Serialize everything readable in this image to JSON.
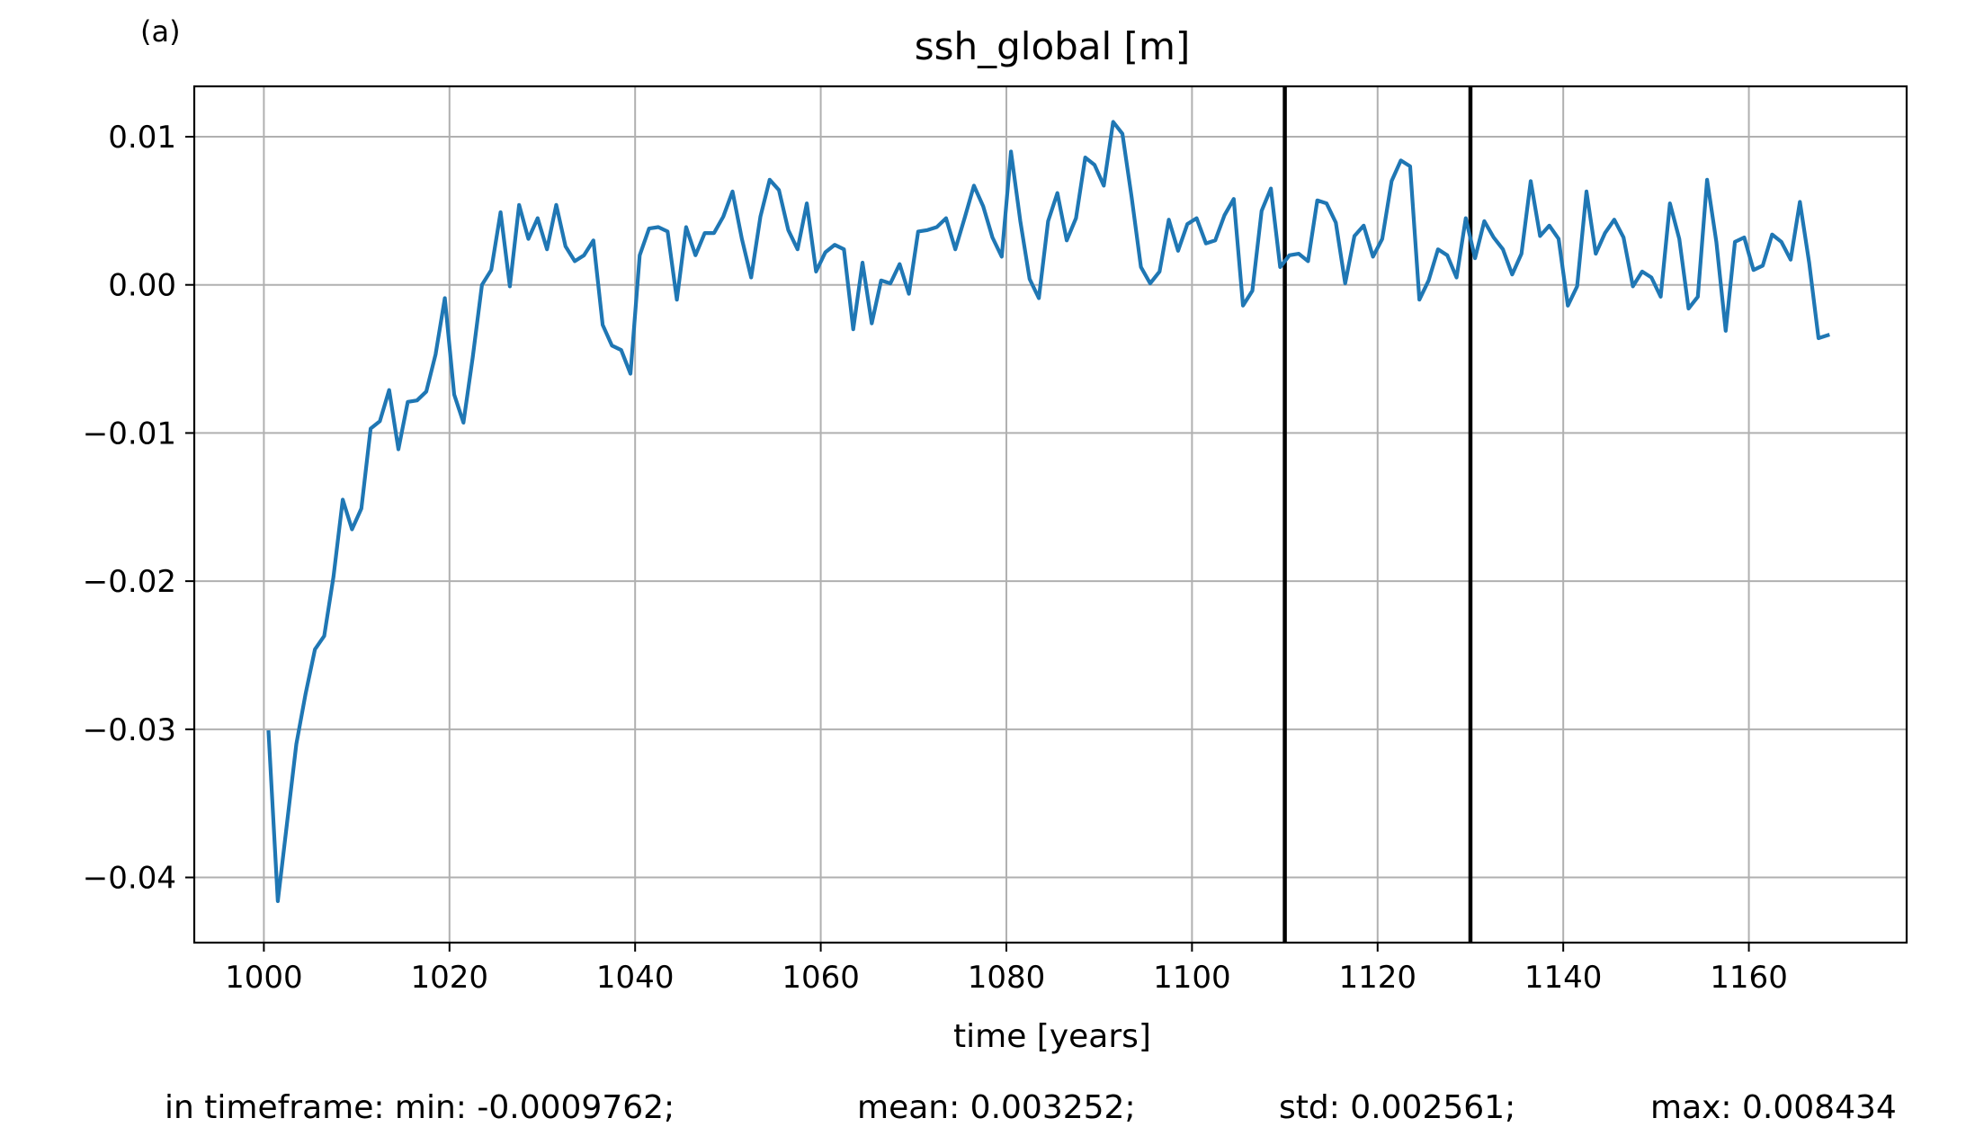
{
  "chart_data": {
    "type": "line",
    "panel_label": "(a)",
    "title": "ssh_global [m]",
    "xlabel": "time [years]",
    "ylabel": "",
    "xlim": [
      992.5,
      1177
    ],
    "ylim": [
      -0.0444,
      0.0134
    ],
    "grid": true,
    "xticks": [
      1000,
      1020,
      1040,
      1060,
      1080,
      1100,
      1120,
      1140,
      1160
    ],
    "xtick_labels": [
      "1000",
      "1020",
      "1040",
      "1060",
      "1080",
      "1100",
      "1120",
      "1140",
      "1160"
    ],
    "yticks": [
      0.01,
      0.0,
      -0.01,
      -0.02,
      -0.03,
      -0.04
    ],
    "ytick_labels": [
      "0.01",
      "0.00",
      "−0.01",
      "−0.02",
      "−0.03",
      "−0.04"
    ],
    "vlines": [
      1110,
      1130
    ],
    "series_color": "#1f77b4",
    "series": [
      {
        "name": "",
        "x": [
          1000.5,
          1001.5,
          1002.5,
          1003.5,
          1004.5,
          1005.5,
          1006.5,
          1007.5,
          1008.5,
          1009.5,
          1010.5,
          1011.5,
          1012.5,
          1013.5,
          1014.5,
          1015.5,
          1016.5,
          1017.5,
          1018.5,
          1019.5,
          1020.5,
          1021.5,
          1022.5,
          1023.5,
          1024.5,
          1025.5,
          1026.5,
          1027.5,
          1028.5,
          1029.5,
          1030.5,
          1031.5,
          1032.5,
          1033.5,
          1034.5,
          1035.5,
          1036.5,
          1037.5,
          1038.5,
          1039.5,
          1040.5,
          1041.5,
          1042.5,
          1043.5,
          1044.5,
          1045.5,
          1046.5,
          1047.5,
          1048.5,
          1049.5,
          1050.5,
          1051.5,
          1052.5,
          1053.5,
          1054.5,
          1055.5,
          1056.5,
          1057.5,
          1058.5,
          1059.5,
          1060.5,
          1061.5,
          1062.5,
          1063.5,
          1064.5,
          1065.5,
          1066.5,
          1067.5,
          1068.5,
          1069.5,
          1070.5,
          1071.5,
          1072.5,
          1073.5,
          1074.5,
          1075.5,
          1076.5,
          1077.5,
          1078.5,
          1079.5,
          1080.5,
          1081.5,
          1082.5,
          1083.5,
          1084.5,
          1085.5,
          1086.5,
          1087.5,
          1088.5,
          1089.5,
          1090.5,
          1091.5,
          1092.5,
          1093.5,
          1094.5,
          1095.5,
          1096.5,
          1097.5,
          1098.5,
          1099.5,
          1100.5,
          1101.5,
          1102.5,
          1103.5,
          1104.5,
          1105.5,
          1106.5,
          1107.5,
          1108.5,
          1109.5,
          1110.5,
          1111.5,
          1112.5,
          1113.5,
          1114.5,
          1115.5,
          1116.5,
          1117.5,
          1118.5,
          1119.5,
          1120.5,
          1121.5,
          1122.5,
          1123.5,
          1124.5,
          1125.5,
          1126.5,
          1127.5,
          1128.5,
          1129.5,
          1130.5,
          1131.5,
          1132.5,
          1133.5,
          1134.5,
          1135.5,
          1136.5,
          1137.5,
          1138.5,
          1139.5,
          1140.5,
          1141.5,
          1142.5,
          1143.5,
          1144.5,
          1145.5,
          1146.5,
          1147.5,
          1148.5,
          1149.5,
          1150.5,
          1151.5,
          1152.5,
          1153.5,
          1154.5,
          1155.5,
          1156.5,
          1157.5,
          1158.5,
          1159.5,
          1160.5,
          1161.5,
          1162.5,
          1163.5,
          1164.5,
          1165.5,
          1166.5,
          1167.5,
          1168.5
        ],
        "y": [
          -0.0302,
          -0.0416,
          -0.0363,
          -0.031,
          -0.0276,
          -0.0246,
          -0.0237,
          -0.0197,
          -0.0145,
          -0.0165,
          -0.0151,
          -0.0097,
          -0.0092,
          -0.0071,
          -0.0111,
          -0.0079,
          -0.0078,
          -0.0072,
          -0.0047,
          -0.0009,
          -0.0074,
          -0.0093,
          -0.0049,
          0.0,
          0.001,
          0.0049,
          -0.0001,
          0.0054,
          0.0031,
          0.0045,
          0.0024,
          0.0054,
          0.0026,
          0.0016,
          0.002,
          0.003,
          -0.0027,
          -0.0041,
          -0.0044,
          -0.006,
          0.002,
          0.0038,
          0.0039,
          0.0036,
          -0.001,
          0.0039,
          0.002,
          0.0035,
          0.0035,
          0.0046,
          0.0063,
          0.0031,
          0.0005,
          0.0046,
          0.0071,
          0.0064,
          0.0037,
          0.0024,
          0.0055,
          0.0009,
          0.0022,
          0.0027,
          0.0024,
          -0.003,
          0.0015,
          -0.0026,
          0.0003,
          0.0001,
          0.0014,
          -0.0006,
          0.0036,
          0.0037,
          0.0039,
          0.0045,
          0.0024,
          0.0045,
          0.0067,
          0.0053,
          0.0032,
          0.0019,
          0.009,
          0.0043,
          0.0004,
          -0.0009,
          0.0043,
          0.0062,
          0.003,
          0.0045,
          0.0086,
          0.0081,
          0.0067,
          0.011,
          0.0102,
          0.0059,
          0.0012,
          0.0001,
          0.0009,
          0.0044,
          0.0023,
          0.0041,
          0.0045,
          0.0028,
          0.003,
          0.0047,
          0.0058,
          -0.0014,
          -0.0004,
          0.005,
          0.0065,
          0.0012,
          0.002,
          0.0021,
          0.0016,
          0.0057,
          0.0055,
          0.0042,
          0.0001,
          0.0033,
          0.004,
          0.0019,
          0.0031,
          0.007,
          0.0084,
          0.008,
          -0.001,
          0.0003,
          0.0024,
          0.002,
          0.0005,
          0.0045,
          0.0018,
          0.0043,
          0.0032,
          0.0024,
          0.0007,
          0.0021,
          0.007,
          0.0033,
          0.004,
          0.0031,
          -0.0014,
          -0.0001,
          0.0063,
          0.0021,
          0.0035,
          0.0044,
          0.0032,
          -0.0001,
          0.0009,
          0.0005,
          -0.0008,
          0.0055,
          0.0031,
          -0.0016,
          -0.0008,
          0.0071,
          0.0029,
          -0.0031,
          0.0029,
          0.0032,
          0.001,
          0.0013,
          0.0034,
          0.0029,
          0.0017,
          0.0056,
          0.0015,
          -0.0036,
          -0.0034
        ]
      }
    ],
    "stats": {
      "min_text": "in timeframe: min: -0.0009762;",
      "mean_text": "mean: 0.003252;",
      "std_text": "std: 0.002561;",
      "max_text": "max: 0.008434"
    }
  }
}
